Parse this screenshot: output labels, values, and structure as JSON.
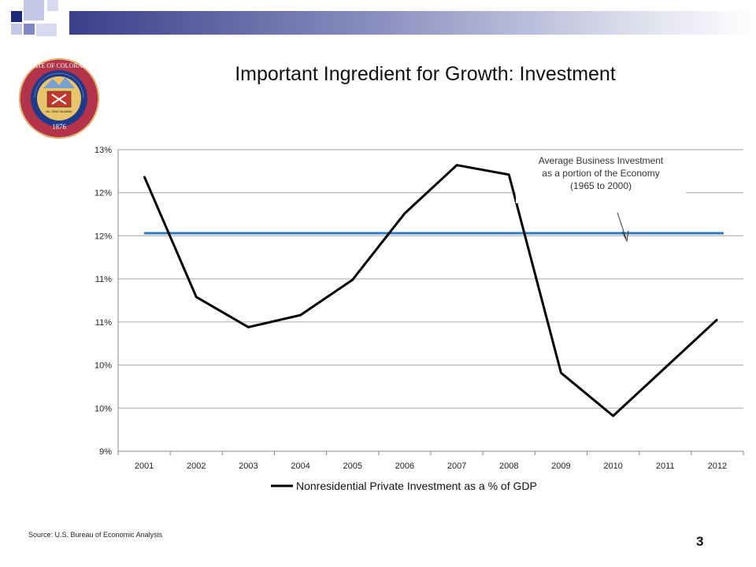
{
  "slide": {
    "title": "Important Ingredient for Growth: Investment",
    "source": "Source: U.S. Bureau of Economic Analysis",
    "page_number": "3"
  },
  "seal": {
    "text_top": "STATE OF COLORADO",
    "year": "1876",
    "motto": "NIL SINE NUMINE",
    "colors": {
      "outer": "#b3344a",
      "ring": "#1f3a8a",
      "inner": "#e8c46a"
    }
  },
  "colors": {
    "brand_dark": "#1f2a7a",
    "brand_light": "#b9bde0",
    "series_line": "#000000",
    "average_line": "#2f7ac0"
  },
  "chart_data": {
    "type": "line",
    "categories": [
      "2001",
      "2002",
      "2003",
      "2004",
      "2005",
      "2006",
      "2007",
      "2008",
      "2009",
      "2010",
      "2011",
      "2012"
    ],
    "series": [
      {
        "name": "Nonresidential Private Investment as a % of GDP",
        "values": [
          12.19,
          10.79,
          10.44,
          10.58,
          10.99,
          11.76,
          12.32,
          12.21,
          9.91,
          9.41,
          9.97,
          10.53
        ],
        "color": "#000000"
      }
    ],
    "reference_line": {
      "value": 11.53,
      "color": "#2f7ac0"
    },
    "annotation": {
      "lines": [
        "Average Business Investment",
        "as a portion of the Economy",
        "(1965 to 2000)"
      ]
    },
    "yticks": [
      9,
      9.5,
      10,
      10.5,
      11,
      11.5,
      12,
      12.5
    ],
    "ytick_labels": [
      "9%",
      "10%",
      "10%",
      "11%",
      "11%",
      "12%",
      "12%",
      "13%"
    ],
    "ylim": [
      9,
      12.5
    ],
    "grid": true,
    "legend_position": "bottom",
    "title": "",
    "xlabel": "",
    "ylabel": ""
  }
}
